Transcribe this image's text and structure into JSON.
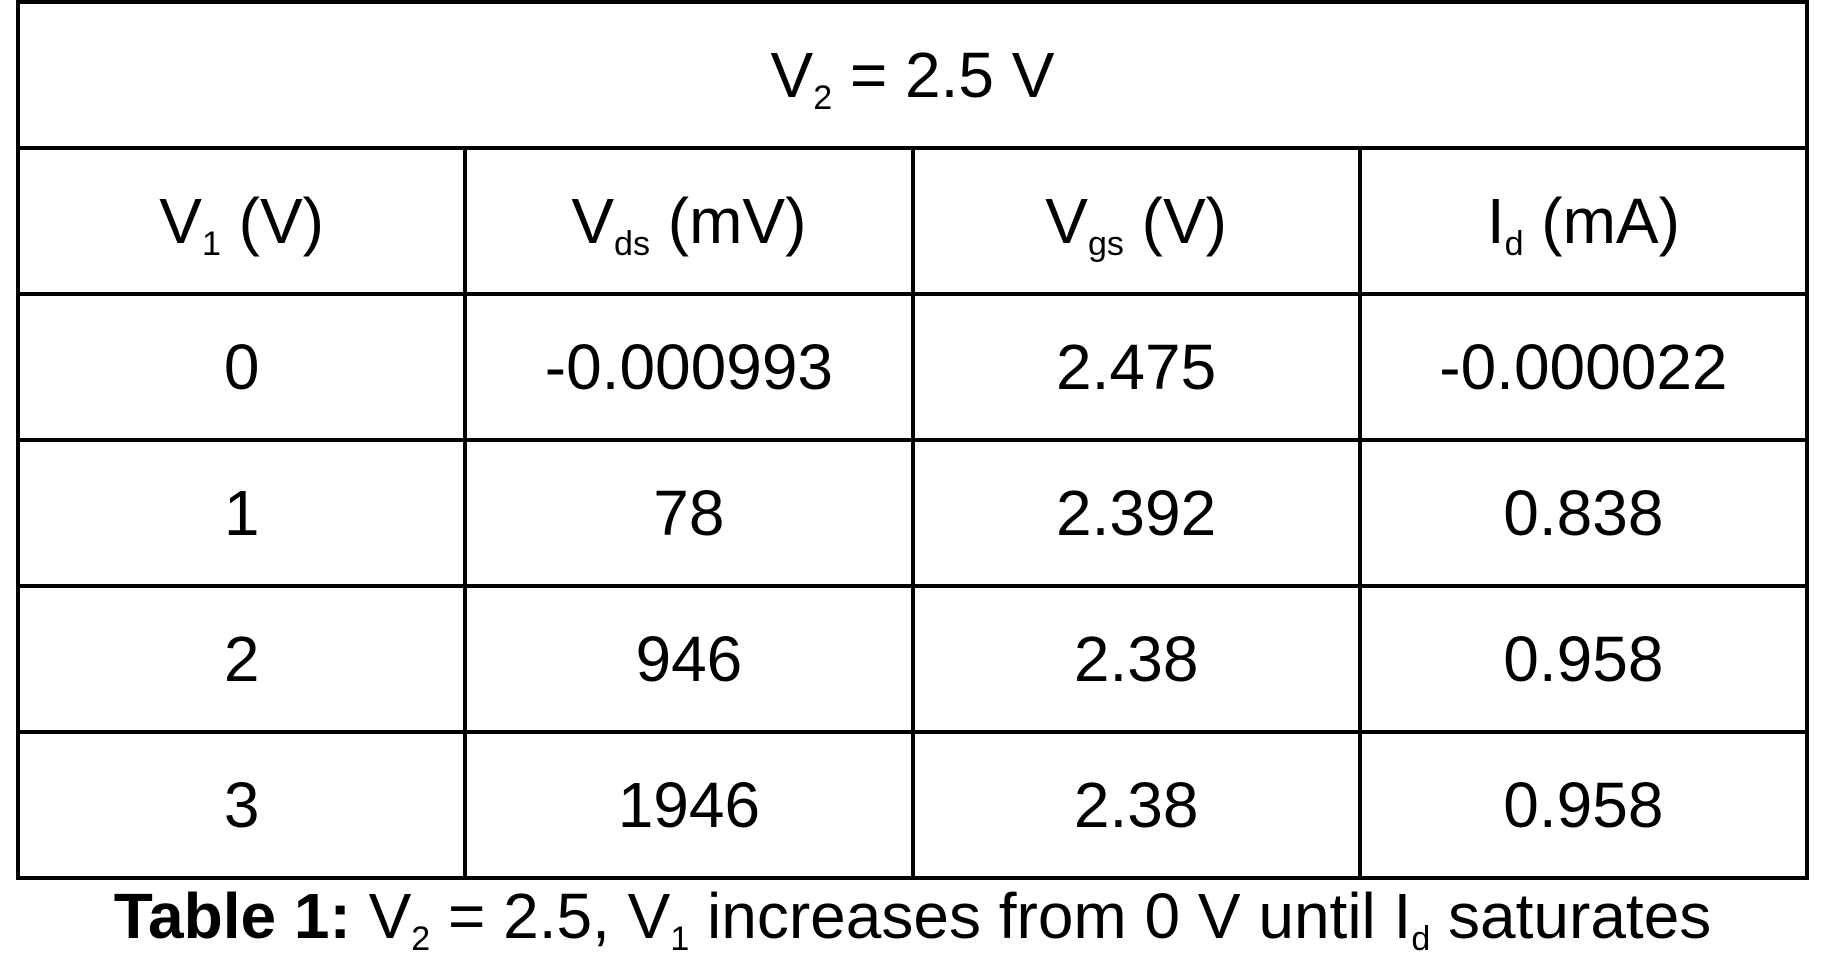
{
  "table": {
    "header": {
      "v2": {
        "base": "V",
        "sub": "2",
        "rest": " = 2.5 V"
      }
    },
    "columns": [
      {
        "base": "V",
        "sub": "1",
        "rest": " (V)"
      },
      {
        "base": "V",
        "sub": "ds",
        "rest": " (mV)"
      },
      {
        "base": "V",
        "sub": "gs",
        "rest": " (V)"
      },
      {
        "base": "I",
        "sub": "d",
        "rest": " (mA)"
      }
    ],
    "rows": [
      [
        "0",
        "-0.000993",
        "2.475",
        "-0.000022"
      ],
      [
        "1",
        "78",
        "2.392",
        "0.838"
      ],
      [
        "2",
        "946",
        "2.38",
        "0.958"
      ],
      [
        "3",
        "1946",
        "2.38",
        "0.958"
      ]
    ]
  },
  "caption": {
    "label": "Table 1:",
    "p1": " V",
    "s1": "2",
    "p2": " = 2.5, V",
    "s2": "1",
    "p3": " increases from 0 V until I",
    "s3": "d",
    "p4": " saturates"
  }
}
